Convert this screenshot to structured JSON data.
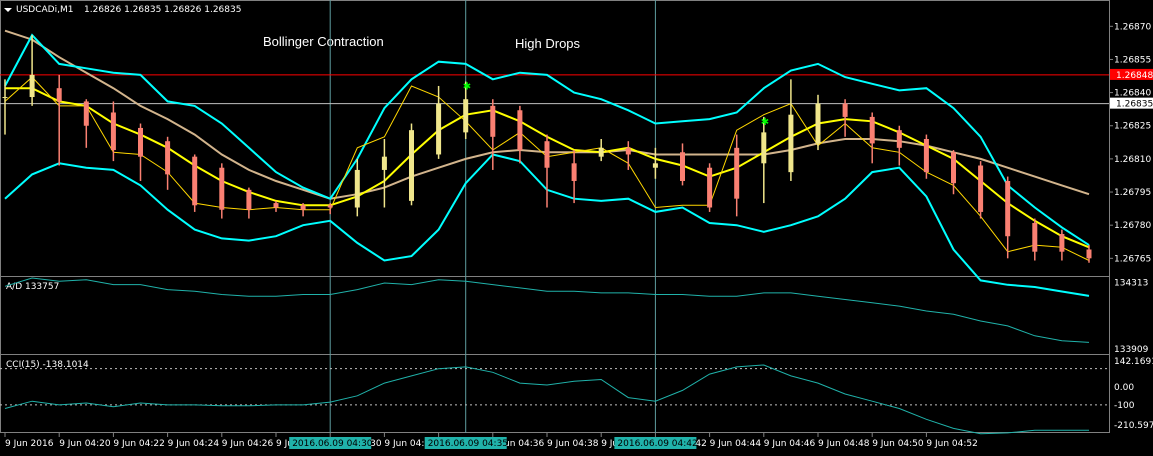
{
  "header": {
    "symbol_timeframe": "USDCADi,M1",
    "ohlc": "1.26826 1.26835 1.26826 1.26835"
  },
  "annotations": [
    {
      "text": "Bollinger Contraction",
      "x_index": 9,
      "price": 1.26863
    },
    {
      "text": "High Drops",
      "x_index": 16,
      "price": 1.26862
    }
  ],
  "price_levels": {
    "red_line": {
      "value": 1.26848,
      "label": "1.26848",
      "color": "#ff0000"
    },
    "bid_line": {
      "value": 1.26835,
      "label": "1.26835",
      "color": "#c0c0c0"
    }
  },
  "colors": {
    "bull": "#f0e68c",
    "bear": "#fa8072",
    "bollinger": "#00ffff",
    "ma_slow": "#d2b48c",
    "ma_fast": "#ffff00",
    "ma_mid": "#ffd700",
    "indicator": "#20b2aa",
    "vline": "#5f9ea0",
    "time_label_bg": "#20b2aa"
  },
  "chart_data": [
    {
      "type": "candlestick",
      "title": "USDCADi,M1",
      "x": [
        "9 Jun 2016",
        "",
        "9 Jun 04:20",
        "",
        "9 Jun 04:22",
        "",
        "9 Jun 04:24",
        "",
        "9 Jun 04:26",
        "",
        "9 Jun 04:28",
        "",
        "9 Jun 04:30",
        "",
        "9 Jun 04:32",
        "",
        "9 Jun 04:34",
        "",
        "9 Jun 04:36",
        "",
        "9 Jun 04:38",
        "",
        "9 Jun 04:40",
        "",
        "9 Jun 04:42",
        "",
        "9 Jun 04:44",
        "",
        "9 Jun 04:46",
        "",
        "9 Jun 04:48",
        "",
        "9 Jun 04:50",
        "",
        "9 Jun 04:52"
      ],
      "candles": [
        [
          1.26838,
          1.26846,
          1.26821,
          1.26838
        ],
        [
          1.26838,
          1.26866,
          1.26834,
          1.26848
        ],
        [
          1.26842,
          1.26848,
          1.26807,
          1.26836
        ],
        [
          1.26836,
          1.26837,
          1.26815,
          1.26825
        ],
        [
          1.26831,
          1.26836,
          1.26809,
          1.26814
        ],
        [
          1.26824,
          1.26826,
          1.268,
          1.26811
        ],
        [
          1.26818,
          1.2682,
          1.26796,
          1.26803
        ],
        [
          1.26811,
          1.26812,
          1.26786,
          1.26789
        ],
        [
          1.26806,
          1.26808,
          1.26783,
          1.26787
        ],
        [
          1.26796,
          1.26797,
          1.26783,
          1.26787
        ],
        [
          1.2679,
          1.26791,
          1.26786,
          1.26788
        ],
        [
          1.26789,
          1.2679,
          1.26784,
          1.26787
        ],
        [
          1.26789,
          1.2679,
          1.26785,
          1.26788
        ],
        [
          1.26788,
          1.2681,
          1.26784,
          1.26805
        ],
        [
          1.26805,
          1.26819,
          1.26788,
          1.26811
        ],
        [
          1.26791,
          1.26826,
          1.26789,
          1.26823
        ],
        [
          1.26812,
          1.26843,
          1.2681,
          1.26835
        ],
        [
          1.26822,
          1.26845,
          1.26819,
          1.26837
        ],
        [
          1.26834,
          1.26837,
          1.26805,
          1.2682
        ],
        [
          1.26832,
          1.26834,
          1.26808,
          1.26814
        ],
        [
          1.26818,
          1.26821,
          1.26788,
          1.26806
        ],
        [
          1.26808,
          1.26814,
          1.2679,
          1.268
        ],
        [
          1.26811,
          1.26819,
          1.26809,
          1.26815
        ],
        [
          1.26815,
          1.26818,
          1.26805,
          1.26812
        ],
        [
          1.26806,
          1.26815,
          1.26801,
          1.26808
        ],
        [
          1.26813,
          1.26817,
          1.26798,
          1.268
        ],
        [
          1.26806,
          1.26808,
          1.26786,
          1.26788
        ],
        [
          1.26815,
          1.26821,
          1.26784,
          1.26792
        ],
        [
          1.26808,
          1.26829,
          1.2679,
          1.26822
        ],
        [
          1.26804,
          1.26846,
          1.268,
          1.2683
        ],
        [
          1.26817,
          1.26839,
          1.26814,
          1.26835
        ],
        [
          1.26835,
          1.26837,
          1.2682,
          1.26829
        ],
        [
          1.26829,
          1.26831,
          1.26808,
          1.26817
        ],
        [
          1.26823,
          1.26825,
          1.26807,
          1.26815
        ],
        [
          1.26819,
          1.26821,
          1.26801,
          1.26804
        ],
        [
          1.26813,
          1.26814,
          1.26794,
          1.26799
        ],
        [
          1.26807,
          1.26809,
          1.26783,
          1.26786
        ],
        [
          1.268,
          1.26802,
          1.26765,
          1.26775
        ],
        [
          1.26781,
          1.26783,
          1.26764,
          1.26768
        ],
        [
          1.26776,
          1.26778,
          1.26764,
          1.26768
        ],
        [
          1.26769,
          1.26771,
          1.26763,
          1.26765
        ]
      ],
      "ylim": [
        1.26757,
        1.26881
      ],
      "yticks": [
        1.2687,
        1.26855,
        1.2684,
        1.26825,
        1.2681,
        1.26795,
        1.2678,
        1.26765
      ],
      "overlays": {
        "bollinger_upper": [
          1.26843,
          1.26866,
          1.26853,
          1.26851,
          1.26849,
          1.26848,
          1.26836,
          1.26834,
          1.26826,
          1.26815,
          1.26804,
          1.26797,
          1.26792,
          1.2681,
          1.26833,
          1.26846,
          1.26854,
          1.26853,
          1.26846,
          1.26849,
          1.26848,
          1.2684,
          1.26837,
          1.26832,
          1.26826,
          1.26827,
          1.26828,
          1.26831,
          1.26842,
          1.2685,
          1.26853,
          1.26847,
          1.26844,
          1.26841,
          1.26842,
          1.26833,
          1.2682,
          1.26798,
          1.26788,
          1.26779,
          1.26771
        ],
        "bollinger_lower": [
          1.26792,
          1.26803,
          1.26808,
          1.26806,
          1.26805,
          1.26798,
          1.26787,
          1.26778,
          1.26774,
          1.26773,
          1.26775,
          1.2678,
          1.26782,
          1.26772,
          1.26764,
          1.26766,
          1.26778,
          1.26799,
          1.26812,
          1.26809,
          1.26796,
          1.26792,
          1.26791,
          1.26792,
          1.26786,
          1.26788,
          1.26781,
          1.2678,
          1.26777,
          1.2678,
          1.26784,
          1.26792,
          1.26804,
          1.26806,
          1.26793,
          1.26769,
          1.26755,
          1.26753,
          1.26752,
          1.2675,
          1.26748
        ],
        "ma_slow": [
          1.26868,
          1.26864,
          1.26856,
          1.26849,
          1.26842,
          1.26834,
          1.26828,
          1.26821,
          1.26812,
          1.26805,
          1.268,
          1.26796,
          1.26792,
          1.26794,
          1.26797,
          1.26802,
          1.26806,
          1.2681,
          1.26813,
          1.26814,
          1.26813,
          1.26813,
          1.26813,
          1.26814,
          1.26812,
          1.26812,
          1.26812,
          1.26812,
          1.26812,
          1.26814,
          1.26817,
          1.26819,
          1.26819,
          1.26818,
          1.26816,
          1.26813,
          1.2681,
          1.26806,
          1.26802,
          1.26798,
          1.26794
        ],
        "ma_fast": [
          1.26842,
          1.26842,
          1.26836,
          1.26834,
          1.26826,
          1.26821,
          1.26815,
          1.26807,
          1.268,
          1.26795,
          1.26791,
          1.26789,
          1.26789,
          1.26793,
          1.268,
          1.26812,
          1.26823,
          1.2683,
          1.26832,
          1.26827,
          1.2682,
          1.26814,
          1.26813,
          1.26815,
          1.2681,
          1.26807,
          1.26802,
          1.26806,
          1.26813,
          1.2682,
          1.26826,
          1.26828,
          1.26827,
          1.26822,
          1.26816,
          1.2681,
          1.268,
          1.2679,
          1.26782,
          1.26775,
          1.2677
        ],
        "ma_mid": [
          1.26836,
          1.26847,
          1.26834,
          1.26834,
          1.26813,
          1.26812,
          1.26804,
          1.2679,
          1.26788,
          1.26787,
          1.26788,
          1.26787,
          1.26787,
          1.26815,
          1.2682,
          1.26843,
          1.26838,
          1.26827,
          1.26814,
          1.26822,
          1.26811,
          1.26813,
          1.26815,
          1.26808,
          1.26788,
          1.26789,
          1.26789,
          1.26823,
          1.2683,
          1.26835,
          1.26816,
          1.26826,
          1.26815,
          1.26813,
          1.26804,
          1.26798,
          1.26784,
          1.26768,
          1.26771,
          1.2677,
          1.26764
        ]
      },
      "ylabel": ""
    },
    {
      "type": "line",
      "title": "A/D 133757",
      "x_count": 41,
      "values": [
        134290,
        134340,
        134320,
        134330,
        134300,
        134300,
        134270,
        134260,
        134240,
        134230,
        134230,
        134240,
        134240,
        134270,
        134310,
        134300,
        134330,
        134320,
        134300,
        134280,
        134260,
        134260,
        134250,
        134250,
        134240,
        134240,
        134230,
        134230,
        134250,
        134250,
        134230,
        134210,
        134190,
        134170,
        134140,
        134120,
        134080,
        134050,
        133990,
        133960,
        133950
      ],
      "ylim": [
        133880,
        134340
      ],
      "yticks": [
        134313,
        133909
      ]
    },
    {
      "type": "line",
      "title": "CCI(15) -138.1014",
      "x_count": 41,
      "values": [
        -120,
        -80,
        -100,
        -90,
        -110,
        -90,
        -100,
        -100,
        -105,
        -105,
        -100,
        -100,
        -85,
        -50,
        20,
        60,
        100,
        110,
        80,
        20,
        10,
        30,
        40,
        -60,
        -80,
        -20,
        70,
        110,
        120,
        60,
        20,
        -40,
        -80,
        -120,
        -180,
        -230,
        -260,
        -255,
        -240,
        -240,
        -240
      ],
      "ylim": [
        -250,
        170
      ],
      "yticks": [
        142.1691,
        0.0,
        -100,
        -210.597
      ],
      "ytick_labels": [
        "142.1691",
        "0.00",
        "-100",
        "-210.597"
      ],
      "hlines": [
        100,
        -100
      ]
    }
  ],
  "vlines": [
    {
      "x_index": 12,
      "label": "2016.06.09 04:30"
    },
    {
      "x_index": 17,
      "label": "2016.06.09 04:35"
    },
    {
      "x_index": 24,
      "label": "2016.06.09 04:42"
    }
  ]
}
